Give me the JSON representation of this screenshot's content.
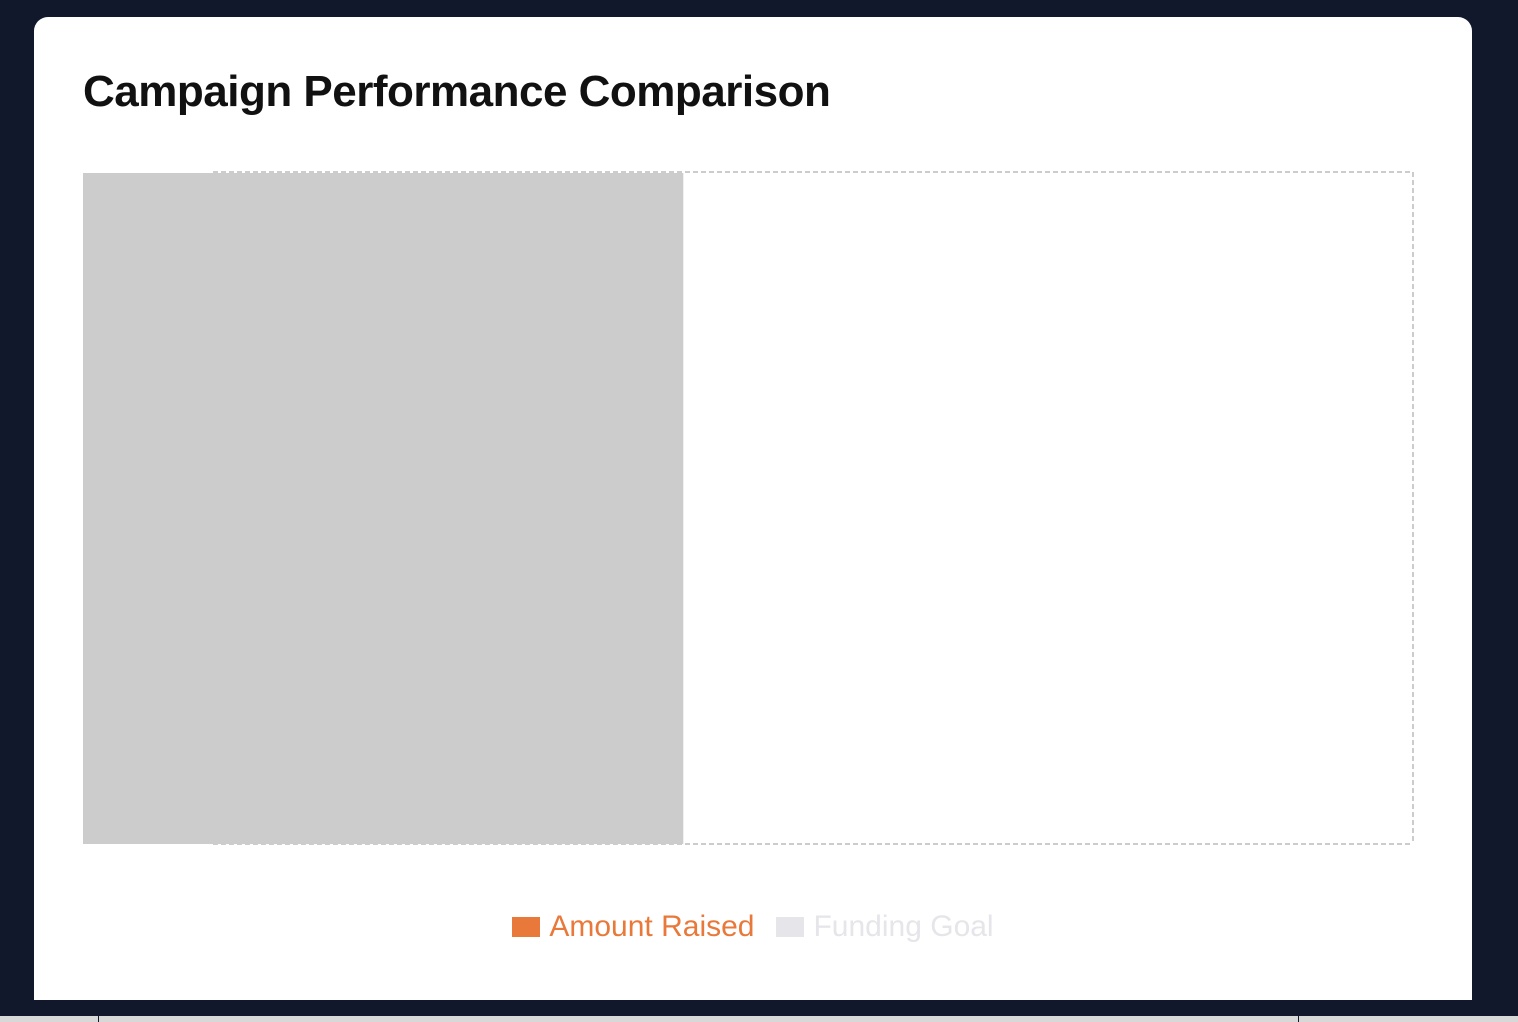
{
  "chart_data": {
    "type": "bar",
    "title": "Campaign Performance Comparison",
    "xlabel": "",
    "ylabel": "",
    "categories": [],
    "series": [
      {
        "name": "Amount Raised",
        "color": "#e8793a",
        "values": []
      },
      {
        "name": "Funding Goal",
        "color": "#e5e5ea",
        "values": []
      }
    ],
    "grid": true,
    "legend": "bottom-center",
    "placeholder_fill": "#cccccc",
    "placeholder_fraction": 0.41
  },
  "legend": {
    "items": [
      {
        "label": "Amount Raised",
        "color": "#e8793a",
        "text_color": "#e8793a"
      },
      {
        "label": "Funding Goal",
        "color": "#e5e5ea",
        "text_color": "#e5e5ea"
      }
    ]
  }
}
